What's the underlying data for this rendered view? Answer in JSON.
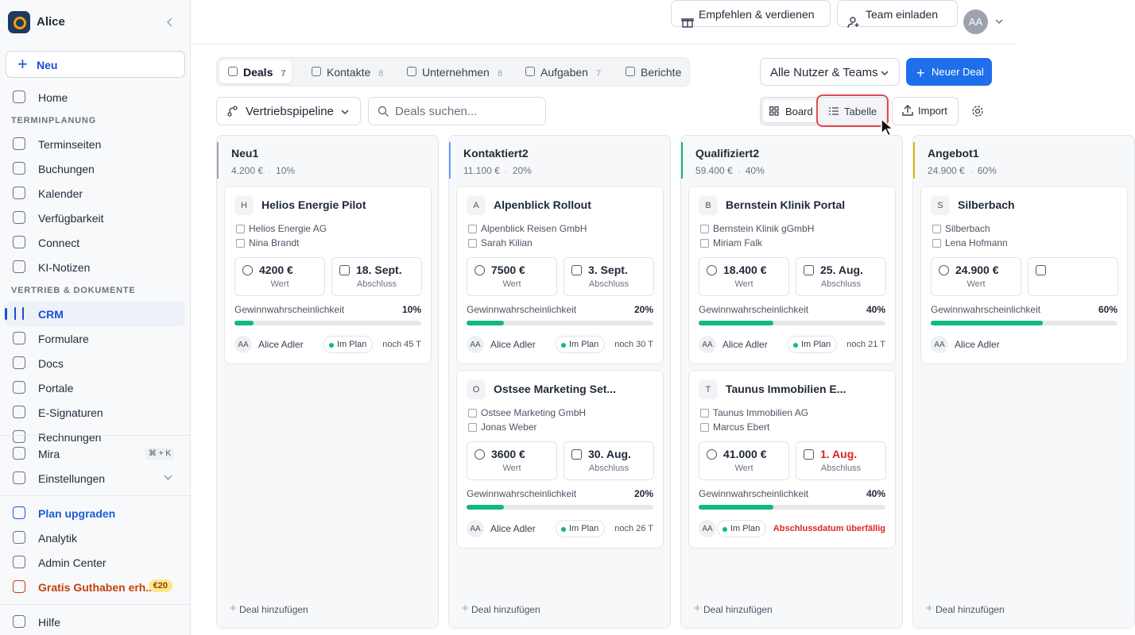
{
  "sidebar": {
    "workspace": "Alice",
    "new_button": "Neu",
    "nav": [
      {
        "label": "Home"
      },
      {
        "heading": "TERMINPLANUNG"
      },
      {
        "label": "Terminseiten"
      },
      {
        "label": "Buchungen"
      },
      {
        "label": "Kalender"
      },
      {
        "label": "Verfügbarkeit"
      },
      {
        "label": "Connect"
      },
      {
        "label": "KI-Notizen"
      },
      {
        "heading": "VERTRIEB & DOKUMENTE"
      },
      {
        "label": "CRM",
        "active": true
      },
      {
        "label": "Formulare"
      },
      {
        "label": "Docs"
      },
      {
        "label": "Portale"
      },
      {
        "label": "E-Signaturen"
      },
      {
        "label": "Rechnungen"
      }
    ],
    "footer": [
      {
        "label": "Mira",
        "shortcut": "⌘ + K"
      },
      {
        "label": "Einstellungen",
        "expandable": true
      },
      {
        "divider": true
      },
      {
        "label": "Plan upgraden",
        "accent": "#1d5bd8"
      },
      {
        "label": "Analytik"
      },
      {
        "label": "Admin Center"
      },
      {
        "label": "Gratis Guthaben erh...",
        "accent": "#c2410c",
        "badge": "€20"
      },
      {
        "divider": true
      },
      {
        "label": "Hilfe"
      }
    ]
  },
  "topbar": {
    "referral": "Empfehlen & verdienen",
    "invite": "Team einladen",
    "avatar": "AA"
  },
  "tabs": [
    {
      "label": "Deals",
      "count": 7,
      "active": true
    },
    {
      "label": "Kontakte",
      "count": 8
    },
    {
      "label": "Unternehmen",
      "count": 8
    },
    {
      "label": "Aufgaben",
      "count": 7
    },
    {
      "label": "Berichte"
    }
  ],
  "filter": "Alle Nutzer & Teams",
  "new_deal": "Neuer Deal",
  "toolbar": {
    "pipeline": "Vertriebspipeline",
    "search_placeholder": "Deals suchen...",
    "board": "Board",
    "table": "Tabelle",
    "import": "Import"
  },
  "columns": [
    {
      "title": "Neu",
      "count": 1,
      "total": "4.200 €",
      "rate": "10%",
      "color": "#9ca3af",
      "add": "Deal hinzufügen",
      "cards": [
        {
          "initial": "H",
          "title": "Helios Energie Pilot",
          "company": "Helios Energie AG",
          "contact": "Nina Brandt",
          "value": "4200 €",
          "value_label": "Wert",
          "date": "18. Sept.",
          "date_label": "Abschluss",
          "probability_label": "Gewinnwahrscheinlichkeit",
          "probability": "10%",
          "owner_initials": "AA",
          "owner": "Alice Adler",
          "status": "Im Plan",
          "remaining": "noch 45 T"
        }
      ]
    },
    {
      "title": "Kontaktiert",
      "count": 2,
      "total": "11.100 €",
      "rate": "20%",
      "color": "#60a5fa",
      "add": "Deal hinzufügen",
      "cards": [
        {
          "initial": "A",
          "title": "Alpenblick Rollout",
          "company": "Alpenblick Reisen GmbH",
          "contact": "Sarah Kilian",
          "value": "7500 €",
          "value_label": "Wert",
          "date": "3. Sept.",
          "date_label": "Abschluss",
          "probability_label": "Gewinnwahrscheinlichkeit",
          "probability": "20%",
          "owner_initials": "AA",
          "owner": "Alice Adler",
          "status": "Im Plan",
          "remaining": "noch 30 T"
        },
        {
          "initial": "O",
          "title": "Ostsee Marketing Set...",
          "company": "Ostsee Marketing GmbH",
          "contact": "Jonas Weber",
          "value": "3600 €",
          "value_label": "Wert",
          "date": "30. Aug.",
          "date_label": "Abschluss",
          "probability_label": "Gewinnwahrscheinlichkeit",
          "probability": "20%",
          "owner_initials": "AA",
          "owner": "Alice Adler",
          "status": "Im Plan",
          "remaining": "noch 26 T"
        }
      ]
    },
    {
      "title": "Qualifiziert",
      "count": 2,
      "total": "59.400 €",
      "rate": "40%",
      "color": "#10b981",
      "add": "Deal hinzufügen",
      "cards": [
        {
          "initial": "B",
          "title": "Bernstein Klinik Portal",
          "company": "Bernstein Klinik gGmbH",
          "contact": "Miriam Falk",
          "value": "18.400 €",
          "value_label": "Wert",
          "date": "25. Aug.",
          "date_label": "Abschluss",
          "probability_label": "Gewinnwahrscheinlichkeit",
          "probability": "40%",
          "owner_initials": "AA",
          "owner": "Alice Adler",
          "status": "Im Plan",
          "remaining": "noch 21 T"
        },
        {
          "initial": "T",
          "title": "Taunus Immobilien E...",
          "company": "Taunus Immobilien AG",
          "contact": "Marcus Ebert",
          "value": "41.000 €",
          "value_label": "Wert",
          "date": "1. Aug.",
          "date_label": "Abschluss",
          "overdue": true,
          "probability_label": "Gewinnwahrscheinlichkeit",
          "probability": "40%",
          "owner_initials": "AA",
          "status": "Im Plan",
          "warning": "Abschlussdatum überfällig"
        }
      ]
    },
    {
      "title": "Angebot",
      "count": 1,
      "total": "24.900 €",
      "rate": "60%",
      "color": "#eab308",
      "add": "Deal hinzufügen",
      "cards": [
        {
          "initial": "S",
          "title": "Silberbach",
          "company": "Silberbach",
          "contact": "Lena Hofmann",
          "value": "24.900 €",
          "value_label": "Wert",
          "probability_label": "Gewinnwahrscheinlichkeit",
          "probability": "60%",
          "owner_initials": "AA",
          "owner": "Alice Adler"
        }
      ]
    }
  ]
}
